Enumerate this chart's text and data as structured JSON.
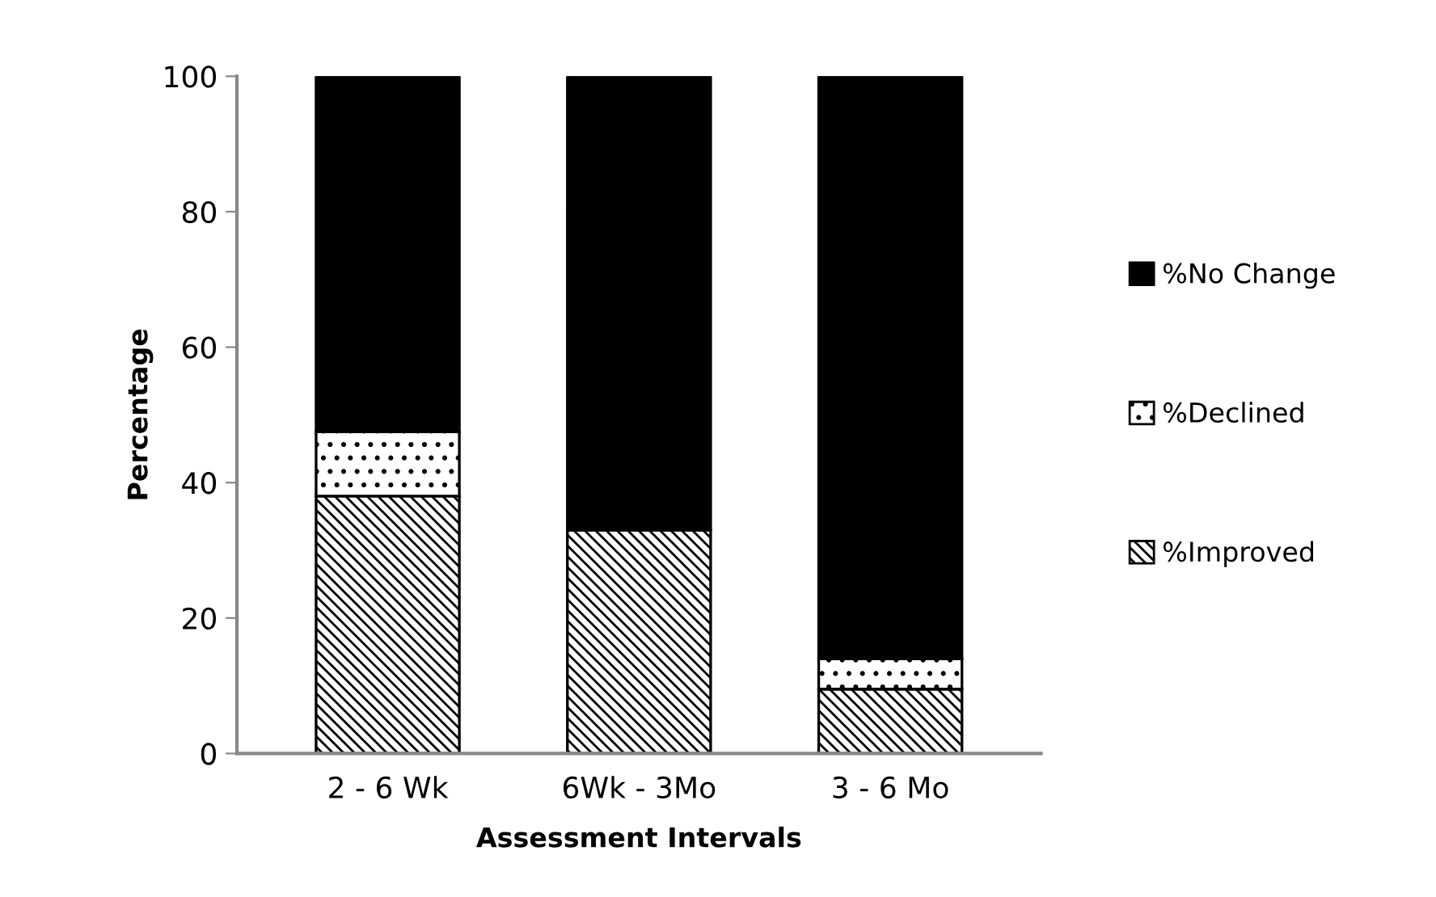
{
  "chart_data": {
    "type": "bar",
    "stacked": true,
    "xlabel": "Assessment Intervals",
    "ylabel": "Percentage",
    "categories": [
      "2 - 6 Wk",
      "6Wk - 3Mo",
      "3 - 6 Mo"
    ],
    "series": [
      {
        "name": "%Improved",
        "color": "#000000",
        "values": [
          38,
          33,
          9.5
        ]
      },
      {
        "name": "%Declined",
        "color": "#000000",
        "values": [
          9.5,
          0,
          4.5
        ]
      },
      {
        "name": "%No Change",
        "color": "#000000",
        "values": [
          52.5,
          67,
          86
        ]
      }
    ],
    "ylim": [
      0,
      100
    ],
    "yticks": [
      0,
      20,
      40,
      60,
      80,
      100
    ],
    "grid": false,
    "legend": "right"
  }
}
